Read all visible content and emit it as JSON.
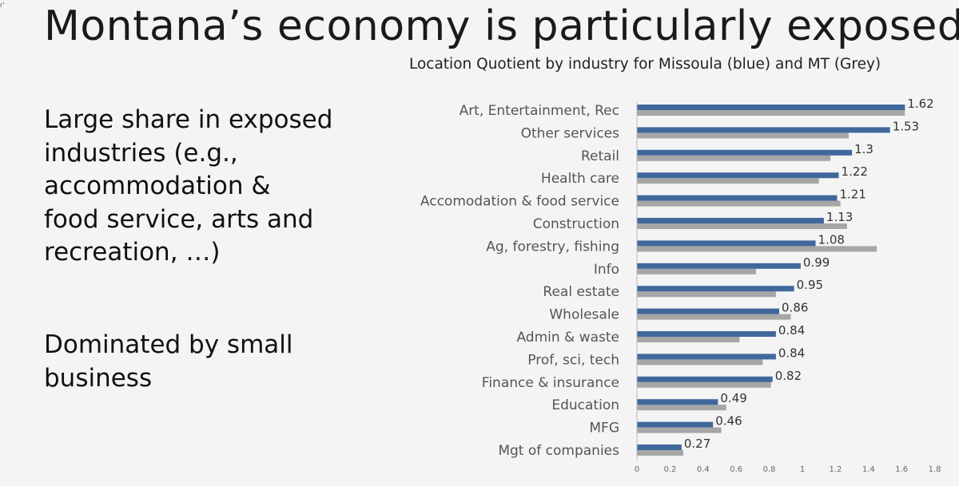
{
  "slide": {
    "corner_mark": "r'",
    "title": "Montana’s economy is particularly exposed",
    "bullet1_lines": [
      "Large share in exposed",
      "industries (e.g.,",
      "accommodation &",
      "food service, arts and",
      "recreation, …)"
    ],
    "bullet2_lines": [
      "Dominated by small",
      "business"
    ]
  },
  "chart_data": {
    "type": "bar",
    "orientation": "horizontal",
    "title": "Location Quotient by industry for Missoula (blue) and MT (Grey)",
    "categories": [
      "Art, Entertainment, Rec",
      "Other services",
      "Retail",
      "Health care",
      "Accomodation & food service",
      "Construction",
      "Ag, forestry, fishing",
      "Info",
      "Real estate",
      "Wholesale",
      "Admin & waste",
      "Prof, sci, tech",
      "Finance & insurance",
      "Education",
      "MFG",
      "Mgt of companies"
    ],
    "series": [
      {
        "name": "Missoula",
        "color": "#41689c",
        "values": [
          1.62,
          1.53,
          1.3,
          1.22,
          1.21,
          1.13,
          1.08,
          0.99,
          0.95,
          0.86,
          0.84,
          0.84,
          0.82,
          0.49,
          0.46,
          0.27
        ],
        "labels": [
          "1.62",
          "1.53",
          "1.3",
          "1.22",
          "1.21",
          "1.13",
          "1.08",
          "0.99",
          "0.95",
          "0.86",
          "0.84",
          "0.84",
          "0.82",
          "0.49",
          "0.46",
          "0.27"
        ]
      },
      {
        "name": "MT",
        "color": "#a6a6a6",
        "values": [
          1.62,
          1.28,
          1.17,
          1.1,
          1.23,
          1.27,
          1.45,
          0.72,
          0.84,
          0.93,
          0.62,
          0.76,
          0.81,
          0.54,
          0.51,
          0.28
        ]
      }
    ],
    "xlim": [
      0,
      1.8
    ],
    "xticks": [
      "0",
      "0.2",
      "0.4",
      "0.6",
      "0.8",
      "1",
      "1.2",
      "1.4",
      "1.6",
      "1.8"
    ],
    "grid": false,
    "legend": "none"
  }
}
